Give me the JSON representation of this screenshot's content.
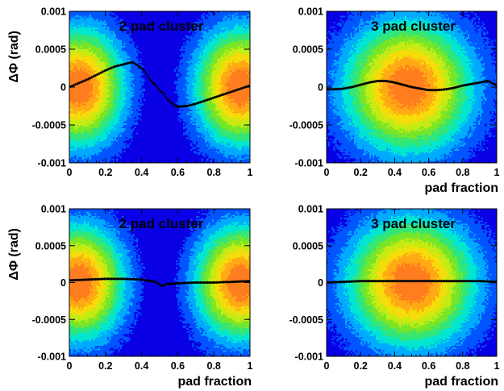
{
  "chart_data": [
    {
      "type": "heatmap",
      "title": "2 pad cluster",
      "xlabel": "",
      "ylabel": "ΔΦ (rad)",
      "xlim": [
        0,
        1
      ],
      "ylim": [
        -0.001,
        0.001
      ],
      "x_ticks": [
        "0",
        "0.2",
        "0.4",
        "0.6",
        "0.8",
        "1"
      ],
      "y_ticks": [
        "0.001",
        "0.0005",
        "0",
        "-0.0005",
        "-0.001"
      ],
      "density": {
        "blobs": [
          {
            "cx": 0.05,
            "cy": 0.0,
            "sx": 0.17,
            "sy": 0.00052
          },
          {
            "cx": 0.95,
            "cy": 0.0,
            "sx": 0.17,
            "sy": 0.00052
          }
        ],
        "valley_x": 0.5,
        "valley_width": 0.045
      },
      "profile": {
        "x": [
          0,
          0.05,
          0.1,
          0.15,
          0.2,
          0.25,
          0.3,
          0.35,
          0.4,
          0.42,
          0.44,
          0.46,
          0.48,
          0.5,
          0.52,
          0.54,
          0.56,
          0.58,
          0.6,
          0.65,
          0.7,
          0.75,
          0.8,
          0.85,
          0.9,
          0.95,
          1.0
        ],
        "y": [
          0.0,
          5e-05,
          0.0001,
          0.00016,
          0.00022,
          0.00027,
          0.0003,
          0.00033,
          0.00025,
          0.0002,
          0.00012,
          6e-05,
          3e-05,
          -5e-05,
          -8e-05,
          -0.00015,
          -0.0002,
          -0.00024,
          -0.00026,
          -0.00025,
          -0.00022,
          -0.00018,
          -0.00014,
          -0.0001,
          -6e-05,
          -2e-05,
          2e-05
        ]
      }
    },
    {
      "type": "heatmap",
      "title": "3 pad cluster",
      "xlabel": "pad fraction",
      "ylabel": "",
      "xlim": [
        0,
        1
      ],
      "ylim": [
        -0.001,
        0.001
      ],
      "x_ticks": [
        "0",
        "0.2",
        "0.4",
        "0.6",
        "0.8",
        "1"
      ],
      "y_ticks": [
        "0.001",
        "0.0005",
        "0",
        "-0.0005",
        "-0.001"
      ],
      "density": {
        "blobs": [
          {
            "cx": 0.48,
            "cy": 0.0,
            "sx": 0.25,
            "sy": 0.00058
          }
        ],
        "valley_x": null,
        "valley_width": 0
      },
      "profile": {
        "x": [
          0,
          0.05,
          0.1,
          0.15,
          0.2,
          0.25,
          0.3,
          0.35,
          0.4,
          0.45,
          0.5,
          0.55,
          0.6,
          0.65,
          0.7,
          0.75,
          0.8,
          0.85,
          0.9,
          0.95,
          1.0
        ],
        "y": [
          -3e-05,
          -3e-05,
          -2e-05,
          0.0,
          3e-05,
          6e-05,
          8e-05,
          8e-05,
          6e-05,
          3e-05,
          0.0,
          -2e-05,
          -4e-05,
          -4e-05,
          -3e-05,
          -1e-05,
          2e-05,
          4e-05,
          6e-05,
          8e-05,
          2e-05
        ]
      }
    },
    {
      "type": "heatmap",
      "title": "2 pad cluster",
      "xlabel": "pad fraction",
      "ylabel": "ΔΦ (rad)",
      "xlim": [
        0,
        1
      ],
      "ylim": [
        -0.001,
        0.001
      ],
      "x_ticks": [
        "0",
        "0.2",
        "0.4",
        "0.6",
        "0.8",
        "1"
      ],
      "y_ticks": [
        "0.001",
        "0.0005",
        "0",
        "-0.0005",
        "-0.001"
      ],
      "density": {
        "blobs": [
          {
            "cx": 0.05,
            "cy": 0.0,
            "sx": 0.17,
            "sy": 0.00052
          },
          {
            "cx": 0.95,
            "cy": 0.0,
            "sx": 0.17,
            "sy": 0.00052
          }
        ],
        "valley_x": 0.5,
        "valley_width": 0.045
      },
      "profile": {
        "x": [
          0,
          0.1,
          0.2,
          0.3,
          0.4,
          0.45,
          0.48,
          0.5,
          0.52,
          0.54,
          0.56,
          0.6,
          0.7,
          0.8,
          0.9,
          1.0
        ],
        "y": [
          3e-05,
          4e-05,
          5e-05,
          5e-05,
          4e-05,
          2e-05,
          1e-05,
          -3e-05,
          -5e-05,
          -1e-05,
          -2e-05,
          -1e-05,
          0.0,
          0.0,
          1e-05,
          2e-05
        ]
      }
    },
    {
      "type": "heatmap",
      "title": "3 pad cluster",
      "xlabel": "pad fraction",
      "ylabel": "",
      "xlim": [
        0,
        1
      ],
      "ylim": [
        -0.001,
        0.001
      ],
      "x_ticks": [
        "0",
        "0.2",
        "0.4",
        "0.6",
        "0.8",
        "1"
      ],
      "y_ticks": [
        "0.001",
        "0.0005",
        "0",
        "-0.0005",
        "-0.001"
      ],
      "density": {
        "blobs": [
          {
            "cx": 0.5,
            "cy": 0.0,
            "sx": 0.25,
            "sy": 0.00058
          }
        ],
        "valley_x": null,
        "valley_width": 0
      },
      "profile": {
        "x": [
          0,
          0.1,
          0.2,
          0.3,
          0.4,
          0.5,
          0.6,
          0.7,
          0.8,
          0.9,
          1.0
        ],
        "y": [
          0.0,
          1e-05,
          2e-05,
          2e-05,
          2e-05,
          2e-05,
          2e-05,
          2e-05,
          2e-05,
          2e-05,
          1e-05
        ]
      }
    }
  ],
  "colors": {
    "palette": [
      "#0a00e6",
      "#0055ff",
      "#00aaff",
      "#00e6d2",
      "#32e678",
      "#78e628",
      "#c3eb14",
      "#f5dc0a",
      "#ffaa14",
      "#ff7d1e"
    ],
    "profile_line": "#000000"
  }
}
